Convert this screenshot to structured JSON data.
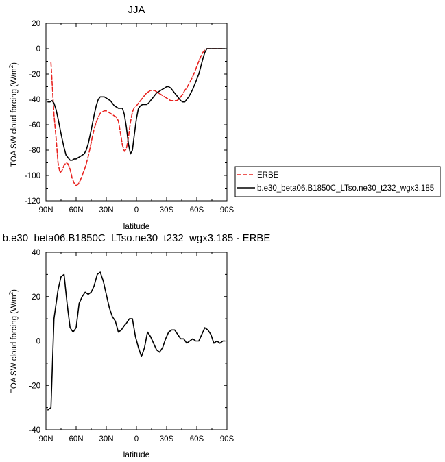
{
  "chart_data": [
    {
      "type": "line",
      "title": "JJA",
      "xlabel": "latitude",
      "ylabel_main": "TOA SW cloud forcing (W/m",
      "ylabel_sup": "2",
      "ylabel_end": ")",
      "xlim": [
        90,
        -90
      ],
      "ylim": [
        -120,
        20
      ],
      "xticks": [
        90,
        60,
        30,
        0,
        -30,
        -60,
        -90
      ],
      "xtick_labels": [
        "90N",
        "60N",
        "30N",
        "0",
        "30S",
        "60S",
        "90S"
      ],
      "yticks": [
        20,
        0,
        -20,
        -40,
        -60,
        -80,
        -100,
        -120
      ],
      "ytick_labels": [
        "20",
        "0",
        "-20",
        "-40",
        "-60",
        "-80",
        "-100",
        "-120"
      ],
      "legend": "right",
      "series": [
        {
          "name": "ERBE",
          "color": "#e8221f",
          "dash": "dashed",
          "x": [
            85,
            84,
            82,
            80,
            78,
            76,
            74,
            72,
            70,
            68,
            66,
            64,
            62,
            60,
            58,
            56,
            54,
            52,
            50,
            48,
            46,
            44,
            42,
            40,
            38,
            36,
            34,
            32,
            30,
            28,
            26,
            24,
            22,
            20,
            18,
            16,
            14,
            12,
            10,
            8,
            6,
            4,
            2,
            0,
            -2,
            -4,
            -6,
            -8,
            -10,
            -12,
            -14,
            -16,
            -18,
            -20,
            -22,
            -24,
            -26,
            -28,
            -30,
            -32,
            -34,
            -36,
            -38,
            -40,
            -42,
            -44,
            -46,
            -48,
            -50,
            -52,
            -54,
            -56,
            -58,
            -60,
            -62,
            -64,
            -66,
            -68,
            -70,
            -75,
            -80,
            -85
          ],
          "y": [
            -11,
            -25,
            -52,
            -70,
            -90,
            -98,
            -96,
            -92,
            -90,
            -91,
            -95,
            -102,
            -106,
            -108,
            -107,
            -104,
            -100,
            -96,
            -91,
            -85,
            -78,
            -70,
            -63,
            -58,
            -54,
            -51,
            -50,
            -49,
            -49,
            -50,
            -51,
            -52,
            -53,
            -54,
            -57,
            -66,
            -76,
            -81,
            -79,
            -70,
            -58,
            -50,
            -46,
            -45,
            -43,
            -41,
            -39,
            -37,
            -35,
            -34,
            -33,
            -33,
            -33,
            -34,
            -35,
            -36,
            -37,
            -38,
            -39,
            -40,
            -41,
            -41,
            -41,
            -41,
            -40,
            -38,
            -36,
            -33,
            -31,
            -28,
            -25,
            -22,
            -18,
            -14,
            -10,
            -6,
            -3,
            -1,
            0,
            0,
            0,
            0
          ]
        },
        {
          "name": "b.e30_beta06.B1850C_LTso.ne30_t232_wgx3.185",
          "color": "#000000",
          "dash": "solid",
          "x": [
            88,
            86,
            84,
            82,
            80,
            78,
            76,
            74,
            72,
            70,
            68,
            66,
            64,
            62,
            60,
            58,
            56,
            54,
            52,
            50,
            48,
            46,
            44,
            42,
            40,
            38,
            36,
            34,
            32,
            30,
            28,
            26,
            24,
            22,
            20,
            18,
            16,
            14,
            12,
            10,
            8,
            6,
            4,
            2,
            0,
            -2,
            -4,
            -6,
            -8,
            -10,
            -12,
            -14,
            -16,
            -18,
            -20,
            -22,
            -24,
            -26,
            -28,
            -30,
            -32,
            -34,
            -36,
            -38,
            -40,
            -42,
            -44,
            -46,
            -48,
            -50,
            -52,
            -54,
            -56,
            -58,
            -60,
            -62,
            -64,
            -66,
            -68,
            -70,
            -75,
            -80,
            -85,
            -88
          ],
          "y": [
            -42,
            -42,
            -41,
            -43,
            -48,
            -55,
            -63,
            -71,
            -78,
            -84,
            -86,
            -88,
            -88,
            -87,
            -87,
            -86,
            -85,
            -84,
            -83,
            -80,
            -75,
            -68,
            -60,
            -52,
            -45,
            -40,
            -38,
            -38,
            -38,
            -39,
            -40,
            -41,
            -43,
            -45,
            -46,
            -47,
            -47,
            -47,
            -52,
            -62,
            -75,
            -83,
            -80,
            -67,
            -55,
            -47,
            -45,
            -44,
            -44,
            -44,
            -43,
            -41,
            -39,
            -37,
            -35,
            -34,
            -33,
            -32,
            -31,
            -30,
            -30,
            -31,
            -33,
            -35,
            -37,
            -39,
            -41,
            -42,
            -42,
            -40,
            -38,
            -35,
            -32,
            -28,
            -24,
            -20,
            -14,
            -8,
            -3,
            0,
            0,
            0,
            0,
            0
          ]
        }
      ]
    },
    {
      "type": "line",
      "title": "b.e30_beta06.B1850C_LTso.ne30_t232_wgx3.185 - ERBE",
      "xlabel": "latitude",
      "ylabel_main": "TOA SW cloud forcing (W/m",
      "ylabel_sup": "2",
      "ylabel_end": ")",
      "xlim": [
        90,
        -90
      ],
      "ylim": [
        -40,
        40
      ],
      "xticks": [
        90,
        60,
        30,
        0,
        -30,
        -60,
        -90
      ],
      "xtick_labels": [
        "90N",
        "60N",
        "30N",
        "0",
        "30S",
        "60S",
        "90S"
      ],
      "yticks": [
        40,
        20,
        0,
        -20,
        -40
      ],
      "ytick_labels": [
        "40",
        "20",
        "0",
        "-20",
        "-40"
      ],
      "series": [
        {
          "color": "#000000",
          "dash": "solid",
          "x": [
            88,
            85,
            82,
            78,
            75,
            72,
            69,
            66,
            63,
            60,
            57,
            54,
            51,
            48,
            45,
            42,
            39,
            36,
            33,
            30,
            27,
            24,
            21,
            18,
            15,
            12,
            10,
            7,
            4,
            1,
            -2,
            -5,
            -8,
            -11,
            -14,
            -17,
            -20,
            -23,
            -26,
            -29,
            -32,
            -35,
            -38,
            -41,
            -44,
            -47,
            -50,
            -53,
            -56,
            -59,
            -62,
            -65,
            -68,
            -71,
            -74,
            -77,
            -80,
            -83,
            -86,
            -88
          ],
          "y": [
            -31,
            -30,
            10,
            23,
            29,
            30,
            17,
            6,
            4,
            6,
            17,
            20,
            22,
            21,
            22,
            25,
            30,
            31,
            27,
            21,
            15,
            11,
            9,
            4,
            5,
            7,
            8,
            10,
            10,
            2,
            -3,
            -7,
            -3,
            4,
            2,
            -1,
            -4,
            -5,
            -3,
            1,
            4,
            5,
            5,
            3,
            1,
            1,
            -1,
            0,
            1,
            0,
            0,
            3,
            6,
            5,
            3,
            -1,
            0,
            -1,
            0,
            0
          ]
        }
      ]
    }
  ]
}
